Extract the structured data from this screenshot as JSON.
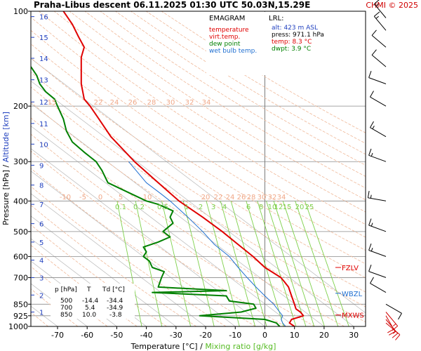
{
  "header": {
    "title": "Praha-Libus   descent   06.11.2025 01:30 UTC  50.03N,15.29E",
    "credit": "CHMI © 2025"
  },
  "legend": {
    "heading": "EMAGRAM",
    "items": [
      {
        "label": "temperature",
        "color": "#e00000"
      },
      {
        "label": "virt.temp.",
        "color": "#e00000"
      },
      {
        "label": "dew point",
        "color": "#008000"
      },
      {
        "label": "wet bulb temp.",
        "color": "#1f6fd1"
      }
    ]
  },
  "lrl": {
    "heading": "LRL:",
    "lines": [
      {
        "text": "alt: 423 m ASL",
        "color": "#1f3fbf"
      },
      {
        "text": "press: 971.1 hPa",
        "color": "#000000"
      },
      {
        "text": "temp: 8.3 °C",
        "color": "#e00000"
      },
      {
        "text": "dwpt: 3.9 °C",
        "color": "#008000"
      }
    ]
  },
  "levels_table": {
    "headers": [
      "p [hPa]",
      "T",
      "Td [°C]"
    ],
    "rows": [
      [
        "500",
        "-14.4",
        "-34.4"
      ],
      [
        "700",
        "5.4",
        "-34.9"
      ],
      [
        "850",
        "10.0",
        "-3.8"
      ]
    ]
  },
  "markers": [
    {
      "label": "FZLV",
      "pressure": 650,
      "color": "#e00000"
    },
    {
      "label": "WBZL",
      "pressure": 785,
      "color": "#1f6fd1"
    },
    {
      "label": "MXWS",
      "pressure": 920,
      "color": "#e00000"
    }
  ],
  "chart_data": {
    "type": "line",
    "xlabel": "Temperature [°C]",
    "xlabel_sep": "/",
    "xlabel2": "Mixing ratio [g/kg]",
    "ylabel": "Pressure [hPa]",
    "ylabel_sep": "/",
    "ylabel2": "Altitude [km]",
    "xlim": [
      -79,
      34
    ],
    "ylim": [
      1000,
      100
    ],
    "y_log": true,
    "x_ticks": [
      -70,
      -60,
      -50,
      -40,
      -30,
      -20,
      -10,
      0,
      10,
      20,
      30
    ],
    "pressure_ticks": [
      100,
      200,
      300,
      400,
      500,
      600,
      700,
      850,
      925,
      1000
    ],
    "altitude_ticks": [
      {
        "km": "1",
        "p": 900
      },
      {
        "km": "2",
        "p": 795
      },
      {
        "km": "3",
        "p": 700
      },
      {
        "km": "4",
        "p": 616
      },
      {
        "km": "5",
        "p": 540
      },
      {
        "km": "6",
        "p": 472
      },
      {
        "km": "7",
        "p": 410
      },
      {
        "km": "8",
        "p": 356
      },
      {
        "km": "9",
        "p": 308
      },
      {
        "km": "10",
        "p": 264
      },
      {
        "km": "11",
        "p": 227
      },
      {
        "km": "12",
        "p": 194
      },
      {
        "km": "13",
        "p": 165
      },
      {
        "km": "14",
        "p": 141
      },
      {
        "km": "15",
        "p": 121
      },
      {
        "km": "16",
        "p": 104
      }
    ],
    "dry_adiabat_labels_upper": [
      "15",
      "22",
      "24",
      "26",
      "28",
      "30",
      "32",
      "34"
    ],
    "dry_adiabat_labels_lower": [
      "-10",
      "-5",
      "0",
      "5",
      "10",
      "20",
      "22",
      "24",
      "26",
      "28",
      "30",
      "32",
      "34"
    ],
    "mixing_ratio_labels": [
      "0.1",
      "0.2",
      "0.5",
      "1",
      "2",
      "3",
      "4",
      "6",
      "8",
      "10",
      "12",
      "15",
      "20",
      "25"
    ],
    "mixing_ratio_values": [
      0.1,
      0.2,
      0.5,
      1,
      2,
      3,
      4,
      6,
      8,
      10,
      12,
      15,
      20,
      25
    ],
    "series": [
      {
        "name": "temperature",
        "color": "#e00000",
        "points": [
          [
            1000,
            10.0
          ],
          [
            975,
            8.3
          ],
          [
            950,
            9.0
          ],
          [
            925,
            13.0
          ],
          [
            900,
            12.0
          ],
          [
            880,
            10.5
          ],
          [
            850,
            10.0
          ],
          [
            800,
            9.0
          ],
          [
            750,
            8.0
          ],
          [
            720,
            6.5
          ],
          [
            700,
            5.4
          ],
          [
            650,
            0.0
          ],
          [
            600,
            -4.0
          ],
          [
            550,
            -9.0
          ],
          [
            500,
            -14.4
          ],
          [
            450,
            -21.0
          ],
          [
            400,
            -29.0
          ],
          [
            350,
            -36.0
          ],
          [
            300,
            -44.0
          ],
          [
            250,
            -52.0
          ],
          [
            220,
            -56.0
          ],
          [
            200,
            -59.0
          ],
          [
            190,
            -61.0
          ],
          [
            170,
            -62.0
          ],
          [
            150,
            -62.0
          ],
          [
            140,
            -62.0
          ],
          [
            130,
            -61.0
          ],
          [
            120,
            -63.0
          ],
          [
            110,
            -65.0
          ],
          [
            100,
            -68.0
          ]
        ]
      },
      {
        "name": "dew point",
        "color": "#008000",
        "points": [
          [
            1000,
            5.0
          ],
          [
            975,
            3.9
          ],
          [
            950,
            0.0
          ],
          [
            925,
            -22.0
          ],
          [
            900,
            -8.0
          ],
          [
            875,
            -3.0
          ],
          [
            850,
            -3.8
          ],
          [
            830,
            -12.0
          ],
          [
            800,
            -13.0
          ],
          [
            780,
            -38.0
          ],
          [
            770,
            -13.0
          ],
          [
            750,
            -36.0
          ],
          [
            700,
            -34.9
          ],
          [
            670,
            -34.0
          ],
          [
            650,
            -38.0
          ],
          [
            620,
            -39.0
          ],
          [
            600,
            -41.0
          ],
          [
            580,
            -40.0
          ],
          [
            560,
            -41.0
          ],
          [
            540,
            -36.0
          ],
          [
            520,
            -32.0
          ],
          [
            500,
            -34.4
          ],
          [
            470,
            -31.0
          ],
          [
            450,
            -32.0
          ],
          [
            430,
            -31.0
          ],
          [
            410,
            -36.0
          ],
          [
            400,
            -40.0
          ],
          [
            380,
            -45.0
          ],
          [
            350,
            -53.0
          ],
          [
            320,
            -55.0
          ],
          [
            300,
            -57.0
          ],
          [
            280,
            -61.0
          ],
          [
            260,
            -65.0
          ],
          [
            240,
            -67.0
          ],
          [
            220,
            -68.0
          ],
          [
            200,
            -70.0
          ],
          [
            190,
            -71.0
          ],
          [
            180,
            -74.0
          ],
          [
            170,
            -76.0
          ],
          [
            160,
            -77.0
          ],
          [
            150,
            -79.0
          ]
        ]
      },
      {
        "name": "wet bulb temp.",
        "color": "#1f6fd1",
        "points": [
          [
            1000,
            7.0
          ],
          [
            975,
            6.0
          ],
          [
            950,
            5.5
          ],
          [
            925,
            6.0
          ],
          [
            900,
            5.0
          ],
          [
            875,
            4.0
          ],
          [
            850,
            3.0
          ],
          [
            800,
            0.0
          ],
          [
            750,
            -3.0
          ],
          [
            700,
            -6.0
          ],
          [
            650,
            -9.0
          ],
          [
            600,
            -12.0
          ],
          [
            550,
            -17.0
          ],
          [
            500,
            -21.0
          ],
          [
            450,
            -26.0
          ],
          [
            400,
            -32.0
          ],
          [
            380,
            -35.0
          ],
          [
            350,
            -40.0
          ],
          [
            300,
            -46.0
          ]
        ]
      }
    ],
    "wind_barbs": [
      {
        "p": 975,
        "dir": 130,
        "speed": 10
      },
      {
        "p": 950,
        "dir": 140,
        "speed": 15
      },
      {
        "p": 925,
        "dir": 150,
        "speed": 20
      },
      {
        "p": 900,
        "dir": 140,
        "speed": 15
      },
      {
        "p": 850,
        "dir": 120,
        "speed": 10
      },
      {
        "p": 780,
        "dir": 300,
        "speed": 10
      },
      {
        "p": 700,
        "dir": 290,
        "speed": 10
      },
      {
        "p": 600,
        "dir": 290,
        "speed": 15
      },
      {
        "p": 500,
        "dir": 290,
        "speed": 15
      },
      {
        "p": 400,
        "dir": 280,
        "speed": 15
      },
      {
        "p": 300,
        "dir": 290,
        "speed": 15
      },
      {
        "p": 250,
        "dir": 300,
        "speed": 15
      },
      {
        "p": 200,
        "dir": 300,
        "speed": 10
      },
      {
        "p": 170,
        "dir": 290,
        "speed": 10
      },
      {
        "p": 150,
        "dir": 310,
        "speed": 10
      },
      {
        "p": 130,
        "dir": 310,
        "speed": 10
      },
      {
        "p": 115,
        "dir": 320,
        "speed": 15
      },
      {
        "p": 105,
        "dir": 320,
        "speed": 15
      }
    ]
  }
}
